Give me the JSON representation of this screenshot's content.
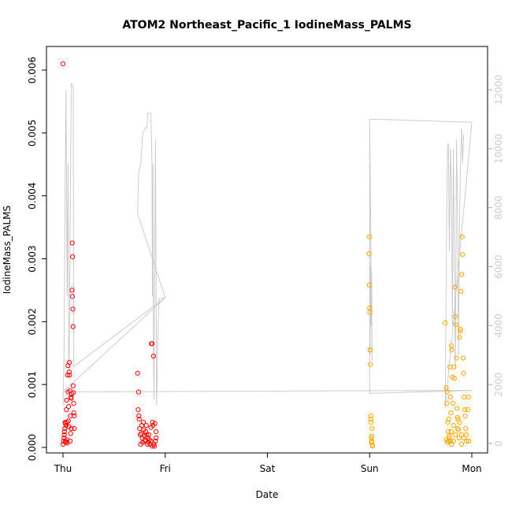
{
  "chart_data": {
    "type": "scatter",
    "title": "ATOM2 Northeast_Pacific_1 IodineMass_PALMS",
    "xlabel": "Date",
    "ylabel": "IodineMass_PALMS",
    "x_ticks": [
      "Thu",
      "Fri",
      "Sat",
      "Sun",
      "Mon"
    ],
    "xlim": [
      0,
      4
    ],
    "ylim": [
      -0.0002,
      0.0062
    ],
    "y_ticks": [
      "0.000",
      "0.001",
      "0.002",
      "0.003",
      "0.004",
      "0.005",
      "0.006"
    ],
    "y2_ticks": [
      "0",
      "2000",
      "4000",
      "6000",
      "8000",
      "10000",
      "12000"
    ],
    "y2lim": [
      -400,
      12900
    ],
    "legend": "none",
    "colors": {
      "red": "#ff0000",
      "orange": "#ffa500",
      "altitude": "#cccccc"
    },
    "series": [
      {
        "color": "#ff0000",
        "points": [
          [
            0.0,
            0.0061
          ],
          [
            0.0,
            5e-05
          ],
          [
            0.005,
            0.0001
          ],
          [
            0.01,
            0.00015
          ],
          [
            0.012,
            0.0002
          ],
          [
            0.015,
            0.00025
          ],
          [
            0.018,
            0.0003
          ],
          [
            0.02,
            0.0004
          ],
          [
            0.022,
            0.00038
          ],
          [
            0.025,
            0.0001
          ],
          [
            0.028,
            8e-05
          ],
          [
            0.03,
            0.00035
          ],
          [
            0.032,
            0.0006
          ],
          [
            0.035,
            0.00075
          ],
          [
            0.038,
            0.0004
          ],
          [
            0.04,
            0.00012
          ],
          [
            0.042,
            7e-05
          ],
          [
            0.045,
            0.00115
          ],
          [
            0.048,
            0.0013
          ],
          [
            0.05,
            0.00088
          ],
          [
            0.052,
            0.00042
          ],
          [
            0.055,
            0.00065
          ],
          [
            0.058,
            0.00033
          ],
          [
            0.06,
            0.0012
          ],
          [
            0.062,
            0.00135
          ],
          [
            0.065,
            0.00115
          ],
          [
            0.068,
            0.0009
          ],
          [
            0.07,
            0.0001
          ],
          [
            0.072,
            0.0005
          ],
          [
            0.075,
            0.00022
          ],
          [
            0.078,
            0.0008
          ],
          [
            0.08,
            0.00078
          ],
          [
            0.082,
            0.0003
          ],
          [
            0.085,
            0.00085
          ],
          [
            0.088,
            0.0025
          ],
          [
            0.09,
            0.00325
          ],
          [
            0.092,
            0.0024
          ],
          [
            0.094,
            0.00303
          ],
          [
            0.096,
            0.0022
          ],
          [
            0.098,
            0.00192
          ],
          [
            0.1,
            0.00098
          ],
          [
            0.102,
            0.00087
          ],
          [
            0.104,
            0.0007
          ],
          [
            0.106,
            0.00055
          ],
          [
            0.108,
            0.0005
          ],
          [
            0.11,
            0.0003
          ],
          [
            0.73,
            0.00118
          ],
          [
            0.74,
            0.00088
          ],
          [
            0.735,
            0.0006
          ],
          [
            0.742,
            0.0005
          ],
          [
            0.745,
            0.00045
          ],
          [
            0.75,
            0.0003
          ],
          [
            0.755,
            0.0002
          ],
          [
            0.76,
            5e-05
          ],
          [
            0.765,
            0.00022
          ],
          [
            0.77,
            0.00035
          ],
          [
            0.775,
            0.00015
          ],
          [
            0.78,
            8e-05
          ],
          [
            0.785,
            0.0004
          ],
          [
            0.79,
            0.00028
          ],
          [
            0.795,
            0.00018
          ],
          [
            0.8,
            0.0001
          ],
          [
            0.805,
            0.00012
          ],
          [
            0.81,
            0.00025
          ],
          [
            0.815,
            0.00035
          ],
          [
            0.82,
            0.0002
          ],
          [
            0.825,
            5e-05
          ],
          [
            0.83,
            0.00015
          ],
          [
            0.835,
            8e-05
          ],
          [
            0.84,
            0.0002
          ],
          [
            0.845,
            0.00012
          ],
          [
            0.85,
            5e-05
          ],
          [
            0.86,
            0.00032
          ],
          [
            0.865,
            0.00165
          ],
          [
            0.87,
            0.00165
          ],
          [
            0.875,
            0.0004
          ],
          [
            0.88,
            0.00035
          ],
          [
            0.885,
            0.00145
          ],
          [
            0.89,
            5e-05
          ],
          [
            0.895,
            2e-05
          ],
          [
            0.9,
            0.00038
          ],
          [
            0.905,
            0.0001
          ],
          [
            0.91,
            0.00025
          ],
          [
            0.912,
            0.00015
          ],
          [
            0.875,
            2e-05
          ],
          [
            0.86,
            0.0001
          ]
        ]
      },
      {
        "color": "#ffa500",
        "points": [
          [
            3.0,
            0.00335
          ],
          [
            2.995,
            0.00308
          ],
          [
            2.998,
            0.00258
          ],
          [
            3.0,
            0.00222
          ],
          [
            3.002,
            0.00215
          ],
          [
            3.004,
            0.00155
          ],
          [
            3.006,
            0.00155
          ],
          [
            3.008,
            0.00132
          ],
          [
            3.01,
            0.00045
          ],
          [
            3.012,
            0.0005
          ],
          [
            3.014,
            0.0004
          ],
          [
            3.016,
            0.00015
          ],
          [
            3.018,
            8e-05
          ],
          [
            3.02,
            0.0001
          ],
          [
            3.022,
            0.00018
          ],
          [
            3.024,
            0.0003
          ],
          [
            3.026,
            4e-05
          ],
          [
            3.028,
            2e-05
          ],
          [
            3.74,
            0.00198
          ],
          [
            3.75,
            0.00095
          ],
          [
            3.755,
            0.0007
          ],
          [
            3.76,
            0.00088
          ],
          [
            3.765,
            0.0004
          ],
          [
            3.77,
            0.00025
          ],
          [
            3.775,
            0.00045
          ],
          [
            3.78,
            0.00015
          ],
          [
            3.785,
            0.00128
          ],
          [
            3.79,
            0.0008
          ],
          [
            3.795,
            0.00055
          ],
          [
            3.8,
            0.00162
          ],
          [
            3.805,
            0.00155
          ],
          [
            3.81,
            0.00112
          ],
          [
            3.815,
            0.0007
          ],
          [
            3.82,
            0.00035
          ],
          [
            3.825,
            0.00128
          ],
          [
            3.83,
            0.0011
          ],
          [
            3.835,
            0.00255
          ],
          [
            3.84,
            0.00208
          ],
          [
            3.845,
            0.00195
          ],
          [
            3.85,
            0.00142
          ],
          [
            3.855,
            0.00062
          ],
          [
            3.86,
            0.00048
          ],
          [
            3.865,
            0.00045
          ],
          [
            3.87,
            0.00028
          ],
          [
            3.875,
            0.00015
          ],
          [
            3.88,
            0.00175
          ],
          [
            3.885,
            0.00185
          ],
          [
            3.89,
            0.00188
          ],
          [
            3.895,
            0.00248
          ],
          [
            3.9,
            0.00275
          ],
          [
            3.905,
            0.00335
          ],
          [
            3.91,
            0.00307
          ],
          [
            3.915,
            0.00142
          ],
          [
            3.92,
            0.00118
          ],
          [
            3.925,
            0.0008
          ],
          [
            3.93,
            0.0006
          ],
          [
            3.935,
            0.0005
          ],
          [
            3.94,
            0.0003
          ],
          [
            3.945,
            0.0002
          ],
          [
            3.95,
            0.0001
          ],
          [
            3.8,
            5e-05
          ],
          [
            3.79,
            0.0001
          ],
          [
            3.77,
            0.0001
          ],
          [
            3.76,
            8e-05
          ],
          [
            3.75,
            0.00012
          ],
          [
            3.9,
            0.0002
          ],
          [
            3.9,
            5e-05
          ],
          [
            3.92,
            0.00015
          ],
          [
            3.88,
            0.0004
          ],
          [
            3.86,
            0.0003
          ],
          [
            3.84,
            0.0002
          ],
          [
            3.82,
            0.0001
          ],
          [
            3.8,
            0.00025
          ],
          [
            3.78,
            0.00018
          ],
          [
            3.96,
            0.0006
          ],
          [
            3.965,
            0.0008
          ],
          [
            3.97,
            0.0001
          ]
        ]
      }
    ],
    "altitude_series": {
      "color": "#cccccc",
      "points": [
        [
          0.0,
          1300
        ],
        [
          0.01,
          3000
        ],
        [
          0.02,
          8500
        ],
        [
          0.03,
          12000
        ],
        [
          0.04,
          5000
        ],
        [
          0.05,
          9500
        ],
        [
          0.055,
          3000
        ],
        [
          0.06,
          2500
        ],
        [
          0.07,
          7500
        ],
        [
          0.08,
          12200
        ],
        [
          0.09,
          12200
        ],
        [
          0.1,
          12000
        ],
        [
          0.105,
          3000
        ],
        [
          0.1,
          2600
        ],
        [
          0.1,
          2600
        ],
        [
          1.0,
          4950
        ],
        [
          0.73,
          7800
        ],
        [
          0.74,
          9200
        ],
        [
          0.76,
          9500
        ],
        [
          0.78,
          10500
        ],
        [
          0.8,
          10700
        ],
        [
          0.82,
          10700
        ],
        [
          0.83,
          11200
        ],
        [
          0.85,
          11200
        ],
        [
          0.86,
          11200
        ],
        [
          0.87,
          9500
        ],
        [
          0.875,
          5000
        ],
        [
          0.88,
          9500
        ],
        [
          0.885,
          3000
        ],
        [
          0.89,
          1500
        ],
        [
          0.9,
          7500
        ],
        [
          0.905,
          10300
        ],
        [
          0.91,
          6000
        ],
        [
          0.915,
          1300
        ],
        [
          0.92,
          2000
        ],
        [
          0.93,
          4000
        ],
        [
          0.94,
          4900
        ],
        [
          1.0,
          4950
        ],
        [
          0.0,
          1750
        ],
        [
          4.0,
          1800
        ],
        [
          3.0,
          1700
        ],
        [
          3.0,
          11000
        ],
        [
          3.005,
          3000
        ],
        [
          3.01,
          6000
        ],
        [
          3.015,
          4000
        ],
        [
          3.02,
          5800
        ],
        [
          3.025,
          2800
        ],
        [
          3.0,
          11000
        ],
        [
          3.05,
          11000
        ],
        [
          4.0,
          10900
        ],
        [
          3.74,
          1200
        ],
        [
          3.75,
          6000
        ],
        [
          3.76,
          10000
        ],
        [
          3.77,
          10200
        ],
        [
          3.78,
          6500
        ],
        [
          3.79,
          10000
        ],
        [
          3.8,
          9000
        ],
        [
          3.81,
          4000
        ],
        [
          3.82,
          10000
        ],
        [
          3.83,
          6000
        ],
        [
          3.84,
          2500
        ],
        [
          3.85,
          10300
        ],
        [
          3.86,
          8000
        ],
        [
          3.87,
          3000
        ],
        [
          3.88,
          7500
        ],
        [
          3.89,
          9700
        ],
        [
          3.9,
          10700
        ],
        [
          3.91,
          9500
        ],
        [
          3.92,
          10500
        ]
      ]
    }
  }
}
